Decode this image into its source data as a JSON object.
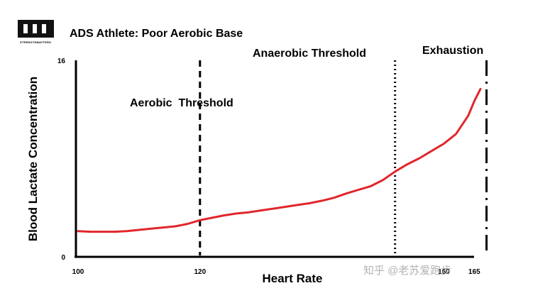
{
  "header": {
    "title": "ADS Athlete: Poor Aerobic Base",
    "logo_text": "STRENGTHMATTERS"
  },
  "watermark": "知乎 @老苏爱跑步",
  "chart_data": {
    "type": "line",
    "title": "ADS Athlete: Poor Aerobic Base",
    "xlabel": "Heart Rate",
    "ylabel": "Blood Lactate Concentration",
    "xlim": [
      100,
      166
    ],
    "ylim": [
      0,
      16
    ],
    "x_ticks": [
      {
        "value": 100,
        "label": "100"
      },
      {
        "value": 120,
        "label": "120"
      },
      {
        "value": 160,
        "label": "160"
      },
      {
        "value": 165,
        "label": "165"
      }
    ],
    "y_ticks": [
      {
        "value": 0,
        "label": "0"
      },
      {
        "value": 16,
        "label": "16"
      }
    ],
    "grid": false,
    "line_color": "#e0262c",
    "series": [
      {
        "x": [
          100,
          102,
          104,
          106,
          108,
          110,
          112,
          114,
          116,
          118,
          120,
          122,
          124,
          126,
          128,
          130,
          132,
          134,
          136,
          138,
          140,
          142,
          144,
          146,
          148,
          150,
          152,
          154,
          156,
          158,
          160,
          162,
          164,
          165,
          166
        ],
        "y": [
          2.0,
          1.95,
          1.95,
          1.95,
          2.0,
          2.1,
          2.2,
          2.3,
          2.4,
          2.6,
          2.9,
          3.1,
          3.3,
          3.45,
          3.55,
          3.7,
          3.85,
          4.0,
          4.15,
          4.3,
          4.5,
          4.75,
          5.1,
          5.4,
          5.7,
          6.2,
          6.9,
          7.5,
          8.0,
          8.6,
          9.2,
          10.0,
          11.5,
          12.7,
          13.7
        ]
      }
    ],
    "annotations": [
      {
        "label": "Aerobic  Threshold",
        "x": 120,
        "style": "dashed"
      },
      {
        "label": "Anaerobic Threshold",
        "x": 152,
        "style": "dotted"
      },
      {
        "label": "Exhaustion",
        "x": 167,
        "style": "dashdot"
      }
    ]
  }
}
